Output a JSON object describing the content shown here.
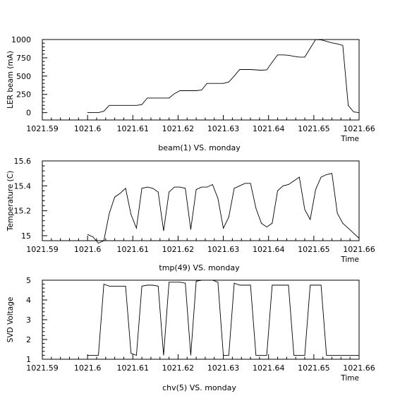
{
  "chart_data": [
    {
      "type": "line",
      "title": "beam(1) VS. monday",
      "xlabel": "Time",
      "ylabel": "LER beam (mA)",
      "xlim": [
        1021.59,
        1021.66
      ],
      "ylim": [
        -100,
        1000
      ],
      "xticks": [
        1021.59,
        1021.6,
        1021.61,
        1021.62,
        1021.63,
        1021.64,
        1021.65,
        1021.66
      ],
      "xtick_labels": [
        "1021.59",
        "1021.6",
        "1021.61",
        "1021.62",
        "1021.63",
        "1021.64",
        "1021.65",
        "1021.66"
      ],
      "yticks": [
        0,
        250,
        500,
        750,
        1000
      ],
      "ytick_labels": [
        "0",
        "250",
        "500",
        "750",
        "1000"
      ],
      "series": [
        {
          "x": [
            1021.6,
            1021.6012,
            1021.6024,
            1021.6036,
            1021.6048,
            1021.606,
            1021.6072,
            1021.6084,
            1021.6096,
            1021.6108,
            1021.612,
            1021.6132,
            1021.6144,
            1021.6156,
            1021.6168,
            1021.618,
            1021.6192,
            1021.6204,
            1021.6216,
            1021.6228,
            1021.624,
            1021.6252,
            1021.6264,
            1021.6276,
            1021.6288,
            1021.63,
            1021.6312,
            1021.6324,
            1021.6336,
            1021.6348,
            1021.636,
            1021.6372,
            1021.6384,
            1021.6396,
            1021.6408,
            1021.642,
            1021.6432,
            1021.6444,
            1021.6456,
            1021.6468,
            1021.648,
            1021.6492,
            1021.6504,
            1021.6516,
            1021.6528,
            1021.654,
            1021.6552,
            1021.6564,
            1021.6576,
            1021.6588,
            1021.66
          ],
          "y": [
            0,
            0,
            0,
            20,
            100,
            100,
            100,
            100,
            100,
            100,
            110,
            200,
            200,
            200,
            200,
            200,
            260,
            300,
            300,
            300,
            300,
            310,
            400,
            400,
            400,
            400,
            420,
            500,
            590,
            590,
            590,
            585,
            580,
            585,
            690,
            790,
            790,
            785,
            770,
            760,
            760,
            880,
            1000,
            995,
            975,
            955,
            940,
            920,
            100,
            10,
            0
          ]
        }
      ]
    },
    {
      "type": "line",
      "title": "tmp(49) VS. monday",
      "xlabel": "Time",
      "ylabel": "Temperature (C)",
      "xlim": [
        1021.59,
        1021.66
      ],
      "ylim": [
        14.96,
        15.6
      ],
      "xticks": [
        1021.59,
        1021.6,
        1021.61,
        1021.62,
        1021.63,
        1021.64,
        1021.65,
        1021.66
      ],
      "xtick_labels": [
        "1021.59",
        "1021.6",
        "1021.61",
        "1021.62",
        "1021.63",
        "1021.64",
        "1021.65",
        "1021.66"
      ],
      "yticks": [
        15,
        15.2,
        15.4,
        15.6
      ],
      "ytick_labels": [
        "15",
        "15.2",
        "15.4",
        "15.6"
      ],
      "series": [
        {
          "x": [
            1021.6,
            1021.6012,
            1021.6024,
            1021.6036,
            1021.6048,
            1021.606,
            1021.6072,
            1021.6084,
            1021.6096,
            1021.6108,
            1021.612,
            1021.6132,
            1021.6144,
            1021.6156,
            1021.6168,
            1021.618,
            1021.6192,
            1021.6204,
            1021.6216,
            1021.6228,
            1021.624,
            1021.6252,
            1021.6264,
            1021.6276,
            1021.6288,
            1021.63,
            1021.6312,
            1021.6324,
            1021.6336,
            1021.6348,
            1021.636,
            1021.6372,
            1021.6384,
            1021.6396,
            1021.6408,
            1021.642,
            1021.6432,
            1021.6444,
            1021.6456,
            1021.6468,
            1021.648,
            1021.6492,
            1021.6504,
            1021.6516,
            1021.6528,
            1021.654,
            1021.6552,
            1021.6564,
            1021.6576,
            1021.6588,
            1021.66
          ],
          "y": [
            15.01,
            14.99,
            14.94,
            14.96,
            15.18,
            15.31,
            15.34,
            15.38,
            15.17,
            15.06,
            15.38,
            15.39,
            15.38,
            15.35,
            15.04,
            15.35,
            15.39,
            15.39,
            15.38,
            15.05,
            15.37,
            15.39,
            15.39,
            15.41,
            15.3,
            15.06,
            15.15,
            15.38,
            15.4,
            15.42,
            15.42,
            15.22,
            15.1,
            15.07,
            15.1,
            15.36,
            15.4,
            15.41,
            15.44,
            15.47,
            15.21,
            15.13,
            15.37,
            15.47,
            15.49,
            15.5,
            15.18,
            15.1,
            15.06,
            15.02,
            14.98
          ]
        }
      ]
    },
    {
      "type": "line",
      "title": "chv(5) VS. monday",
      "xlabel": "Time",
      "ylabel": "SVD Voltage",
      "xlim": [
        1021.59,
        1021.66
      ],
      "ylim": [
        1,
        5
      ],
      "xticks": [
        1021.59,
        1021.6,
        1021.61,
        1021.62,
        1021.63,
        1021.64,
        1021.65,
        1021.66
      ],
      "xtick_labels": [
        "1021.59",
        "1021.6",
        "1021.61",
        "1021.62",
        "1021.63",
        "1021.64",
        "1021.65",
        "1021.66"
      ],
      "yticks": [
        1,
        2,
        3,
        4,
        5
      ],
      "ytick_labels": [
        "1",
        "2",
        "3",
        "4",
        "5"
      ],
      "series": [
        {
          "x": [
            1021.6,
            1021.6012,
            1021.6024,
            1021.6036,
            1021.6048,
            1021.606,
            1021.6072,
            1021.6084,
            1021.6096,
            1021.6108,
            1021.612,
            1021.6132,
            1021.6144,
            1021.6156,
            1021.6168,
            1021.618,
            1021.6192,
            1021.6204,
            1021.6216,
            1021.6228,
            1021.624,
            1021.6252,
            1021.6264,
            1021.6276,
            1021.6288,
            1021.63,
            1021.6312,
            1021.6324,
            1021.6336,
            1021.6348,
            1021.636,
            1021.6372,
            1021.6384,
            1021.6396,
            1021.6408,
            1021.642,
            1021.6432,
            1021.6444,
            1021.6456,
            1021.6468,
            1021.648,
            1021.6492,
            1021.6504,
            1021.6516,
            1021.6528,
            1021.654,
            1021.6552,
            1021.6564,
            1021.6576,
            1021.6588,
            1021.66
          ],
          "y": [
            1.2,
            1.2,
            1.2,
            4.8,
            4.7,
            4.7,
            4.7,
            4.7,
            1.3,
            1.2,
            4.7,
            4.75,
            4.75,
            4.7,
            1.2,
            4.9,
            4.9,
            4.9,
            4.85,
            1.2,
            4.95,
            5.0,
            5.0,
            5.0,
            4.9,
            1.2,
            1.2,
            4.85,
            4.75,
            4.75,
            4.75,
            1.2,
            1.2,
            1.2,
            4.75,
            4.75,
            4.75,
            4.75,
            1.2,
            1.2,
            1.2,
            4.75,
            4.75,
            4.75,
            1.2,
            1.2,
            1.2,
            1.2,
            1.2,
            1.2,
            1.2
          ]
        }
      ]
    }
  ]
}
